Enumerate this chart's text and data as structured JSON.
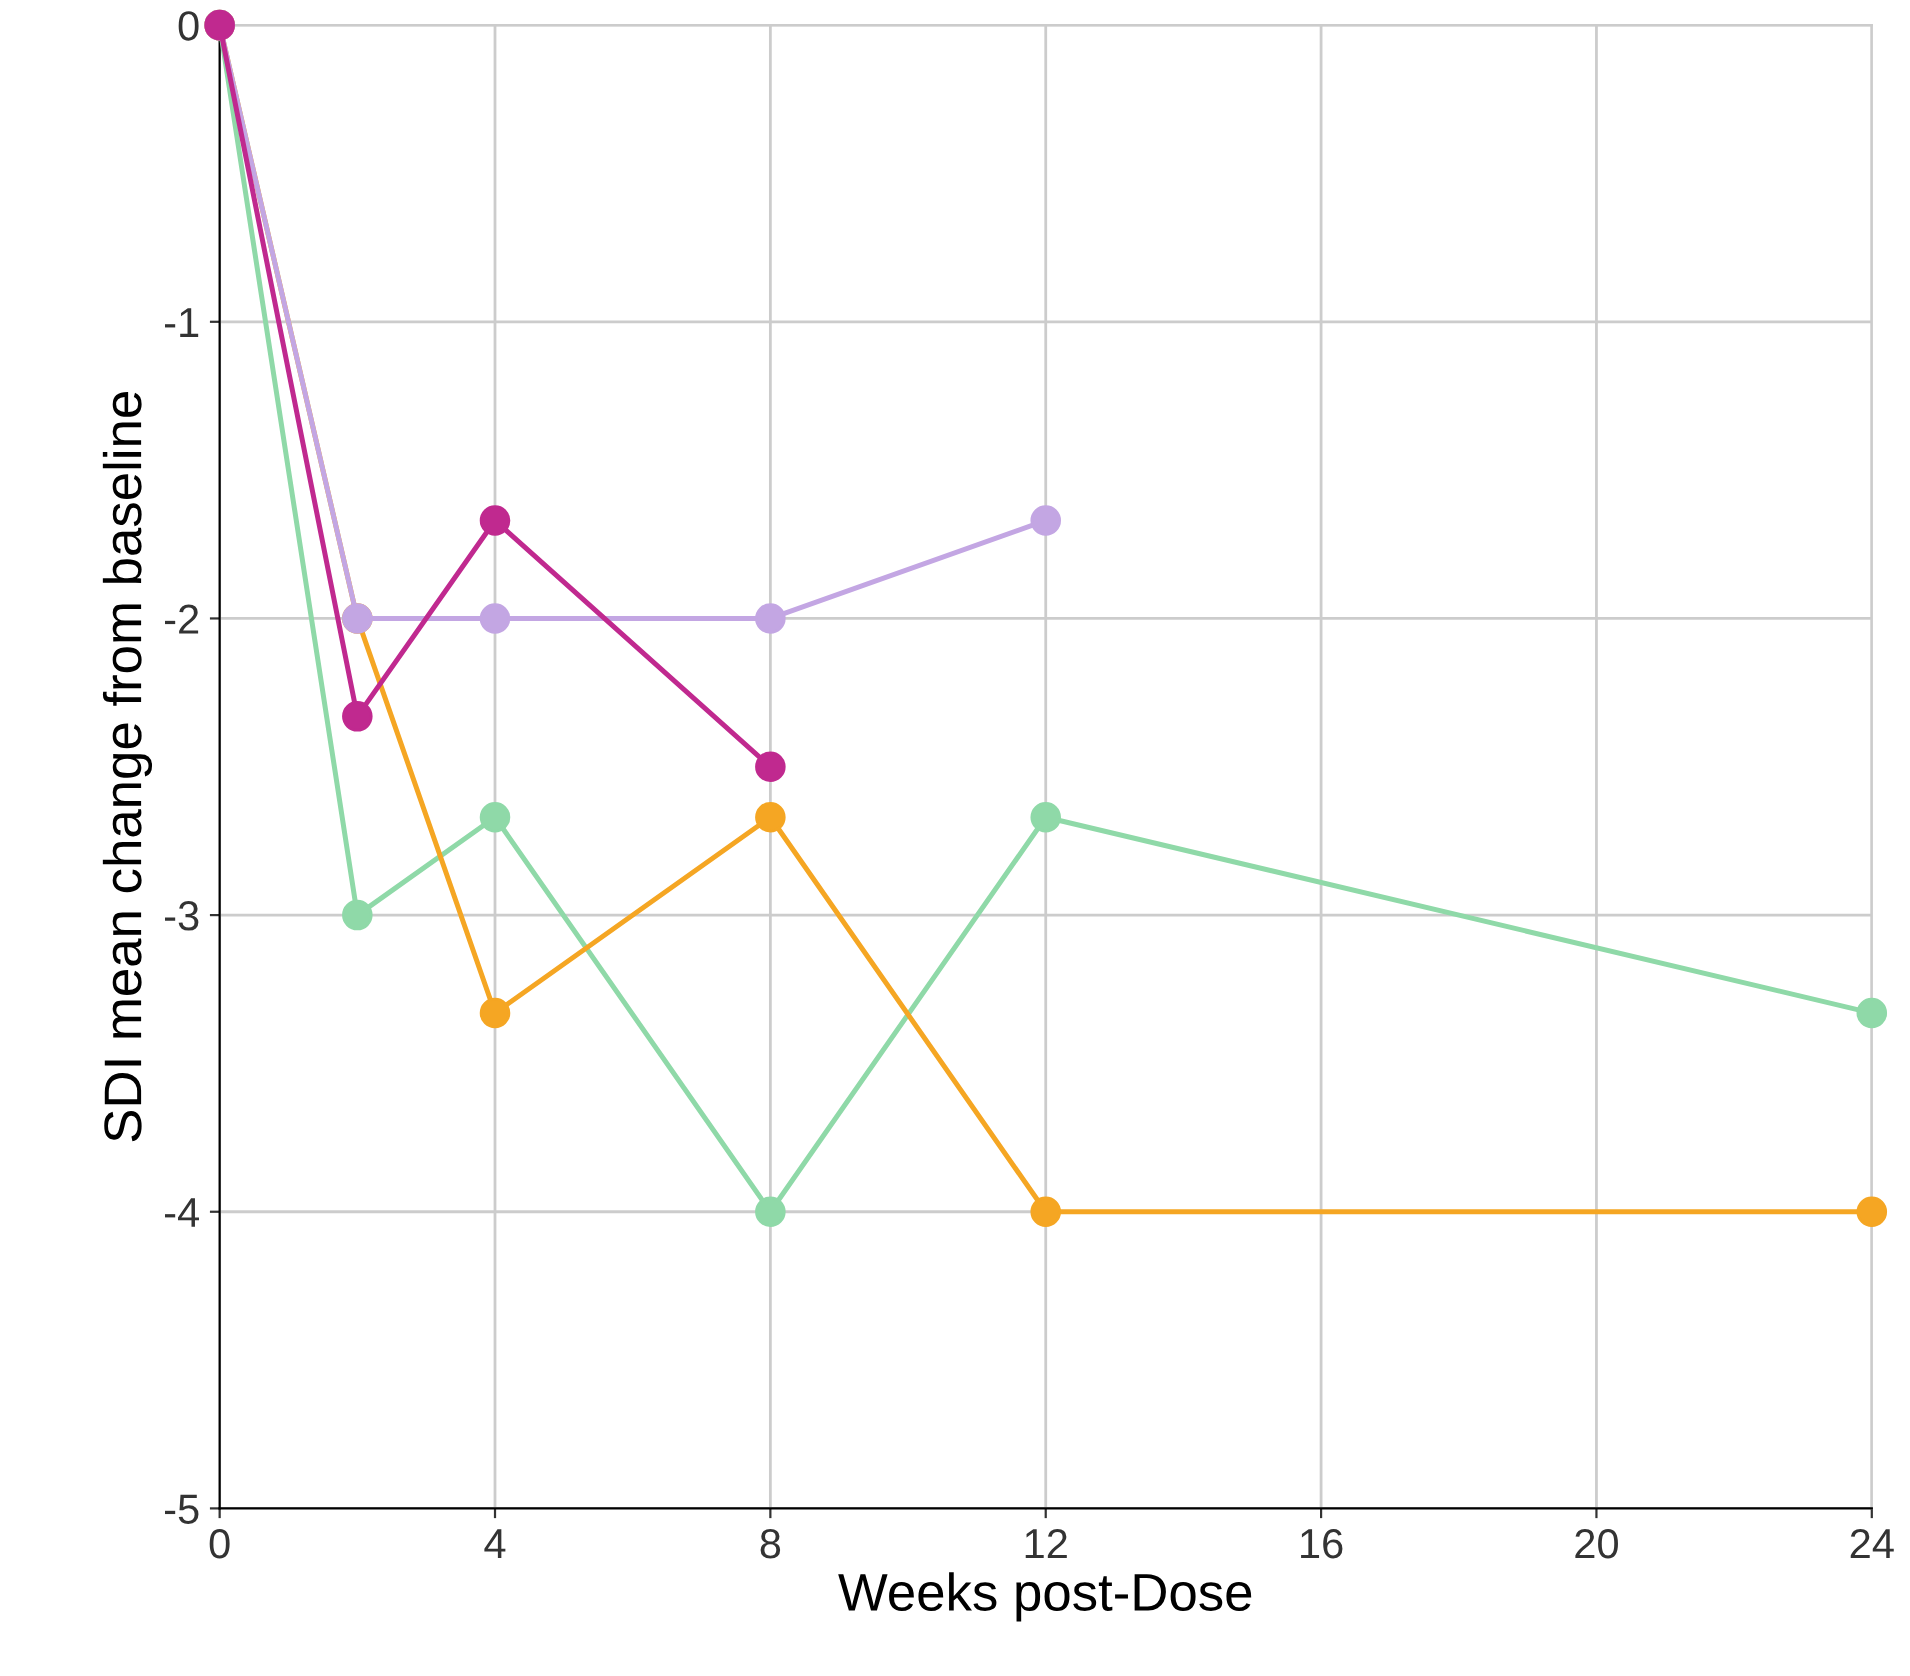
{
  "chart_data": {
    "type": "line",
    "xlabel": "Weeks post-Dose",
    "ylabel": "SDI mean change from baseline",
    "xlim": [
      0,
      24
    ],
    "ylim": [
      -5,
      0
    ],
    "xticks": [
      0,
      4,
      8,
      12,
      16,
      20,
      24
    ],
    "yticks": [
      -5,
      -4,
      -3,
      -2,
      -1,
      0
    ],
    "grid": true,
    "marker": "circle",
    "line_style": "solid",
    "series": [
      {
        "color": "#8fd9a8",
        "x": [
          0,
          2,
          4,
          8,
          12,
          24
        ],
        "values": [
          0,
          -3,
          -2.67,
          -4,
          -2.67,
          -3.33
        ]
      },
      {
        "color": "#f5a623",
        "x": [
          0,
          2,
          4,
          8,
          12,
          24
        ],
        "values": [
          0,
          -2,
          -3.33,
          -2.67,
          -4,
          -4
        ]
      },
      {
        "color": "#c3a6e3",
        "x": [
          0,
          2,
          4,
          8,
          12
        ],
        "values": [
          0,
          -2,
          -2,
          -2,
          -1.67
        ]
      },
      {
        "color": "#c0298f",
        "x": [
          0,
          2,
          4,
          8
        ],
        "values": [
          0,
          -2.33,
          -1.67,
          -2.5
        ]
      }
    ]
  }
}
